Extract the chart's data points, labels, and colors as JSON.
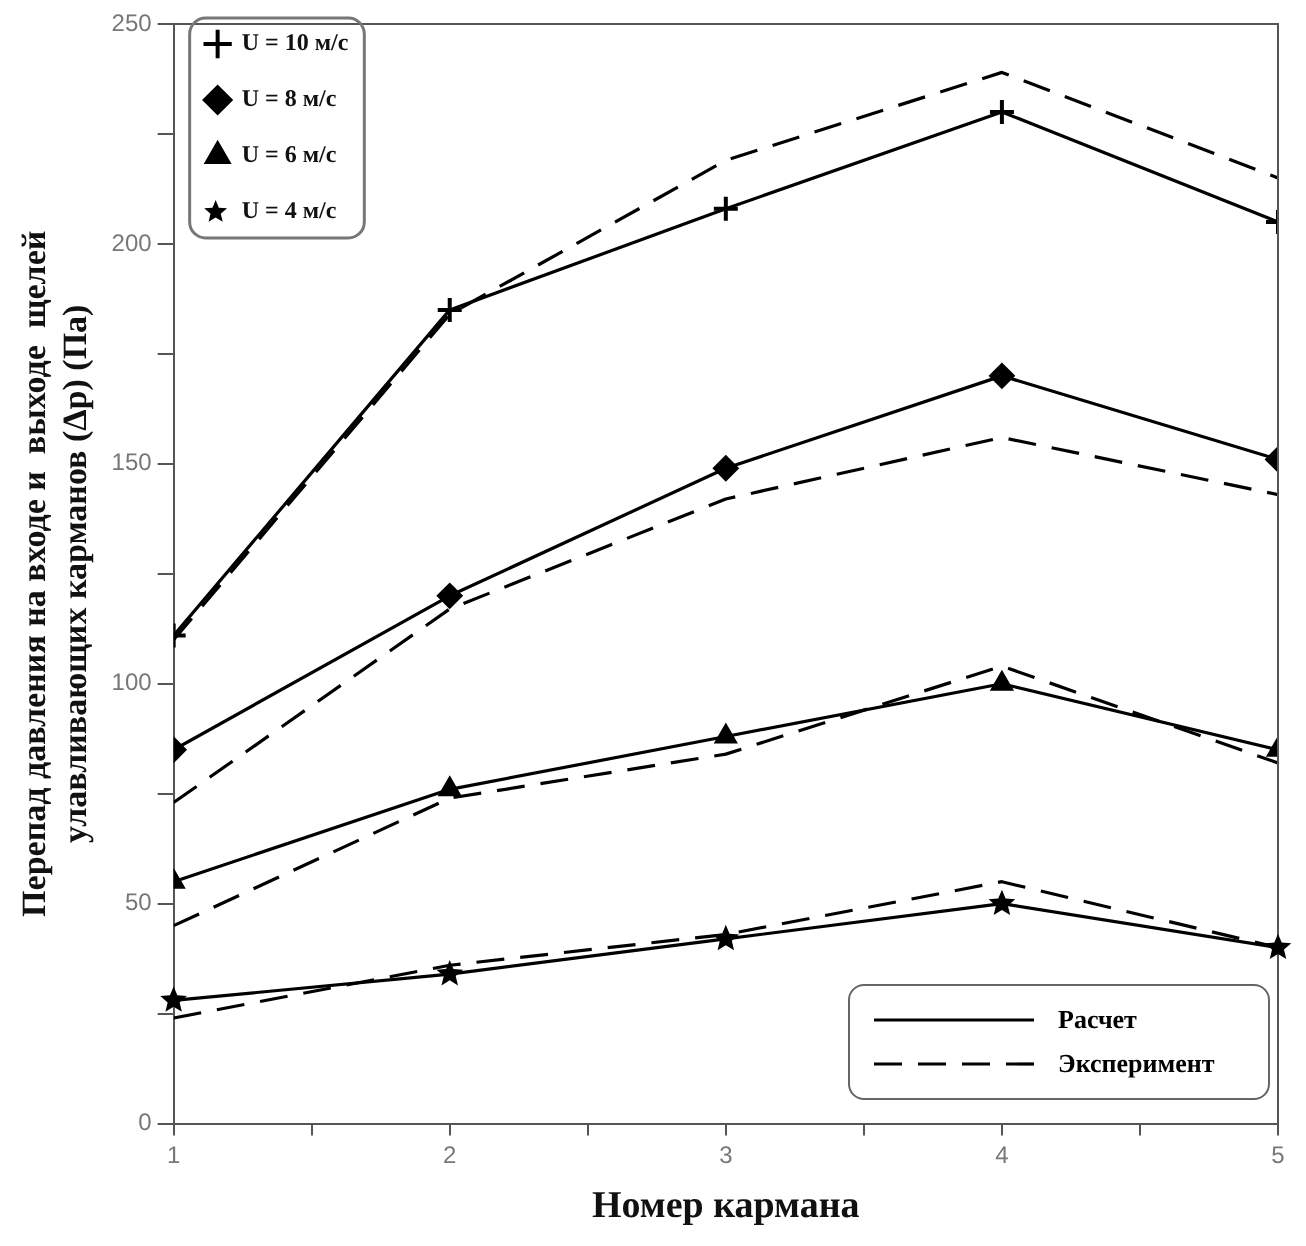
{
  "chart_data": {
    "type": "line",
    "xlabel": "Номер кармана",
    "ylabel": "Перепад давления на входе и  выходе  щелей\nулавливающих карманов (Δp) (Па)",
    "x": [
      1,
      2,
      3,
      4,
      5
    ],
    "xlim": [
      1,
      5
    ],
    "ylim": [
      0,
      250
    ],
    "xticks": [
      1,
      {
        "value": 1.5,
        "label": null
      },
      2,
      {
        "value": 2.5,
        "label": null
      },
      3,
      {
        "value": 3.5,
        "label": null
      },
      4,
      {
        "value": 4.5,
        "label": null
      },
      5
    ],
    "yticks": [
      0,
      {
        "value": 25,
        "label": null
      },
      50,
      {
        "value": 75,
        "label": null
      },
      100,
      {
        "value": 125,
        "label": null
      },
      150,
      {
        "value": 175,
        "label": null
      },
      200,
      {
        "value": 225,
        "label": null
      },
      250
    ],
    "grid": false,
    "legend": "top left",
    "series": [
      {
        "name": "U = 10 м/с",
        "color": "#000000",
        "marker": "cross",
        "line_style": "solid",
        "values": [
          111,
          185,
          208,
          230,
          205
        ]
      },
      {
        "name": "U = 8 м/с",
        "color": "#000000",
        "marker": "diamond",
        "line_style": "solid",
        "values": [
          85,
          120,
          149,
          170,
          151
        ]
      },
      {
        "name": "U = 6 м/с",
        "color": "#000000",
        "marker": "triangle",
        "line_style": "solid",
        "values": [
          55,
          76,
          88,
          100,
          85
        ]
      },
      {
        "name": "U = 4 м/с",
        "color": "#000000",
        "marker": "star",
        "line_style": "solid",
        "values": [
          28,
          34,
          42,
          50,
          40
        ]
      },
      {
        "color": "#000000",
        "marker": "none",
        "line_style": "dashed",
        "values": [
          110,
          184,
          219,
          239,
          215
        ]
      },
      {
        "color": "#000000",
        "marker": "none",
        "line_style": "dashed",
        "values": [
          73,
          117,
          142,
          156,
          143
        ]
      },
      {
        "color": "#000000",
        "marker": "none",
        "line_style": "dashed",
        "values": [
          45,
          74,
          84,
          104,
          82
        ]
      },
      {
        "color": "#000000",
        "marker": "none",
        "line_style": "dashed",
        "values": [
          24,
          36,
          43,
          55,
          40
        ]
      }
    ],
    "annotations": [
      "Расчет",
      "Эксперимент"
    ]
  }
}
